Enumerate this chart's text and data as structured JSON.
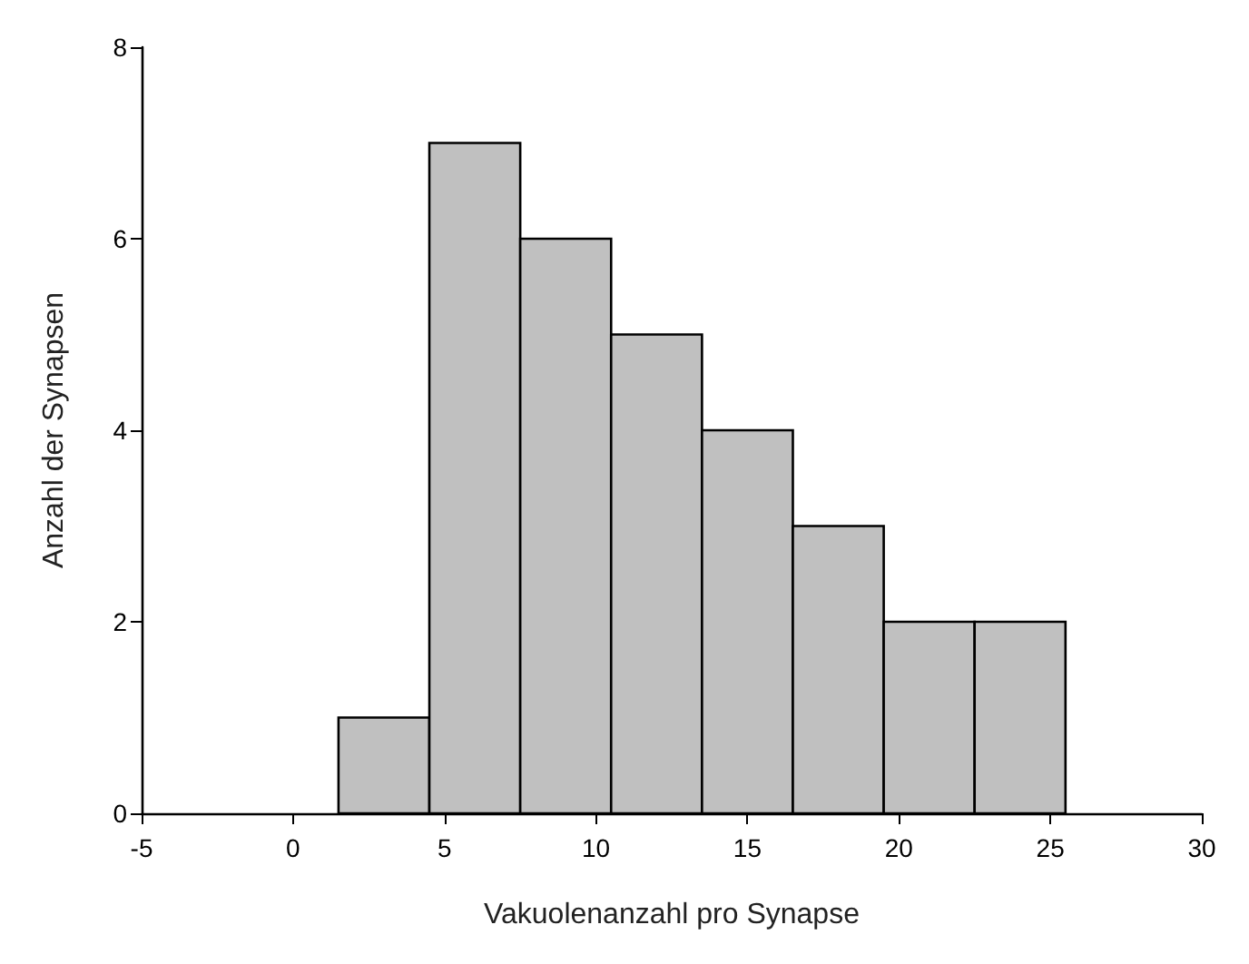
{
  "chart_data": {
    "type": "histogram",
    "xlabel": "Vakuolenanzahl pro Synapse",
    "ylabel": "Anzahl der Synapsen",
    "bins": [
      1.5,
      4.5,
      7.5,
      10.5,
      13.5,
      16.5,
      19.5,
      22.5,
      25.5
    ],
    "values": [
      1,
      7,
      6,
      5,
      4,
      3,
      2,
      2
    ],
    "color": "#c0c0c0",
    "xlim": [
      -5,
      30
    ],
    "xticks": [
      -5,
      0,
      5,
      10,
      15,
      20,
      25,
      30
    ],
    "ylim": [
      0,
      8
    ],
    "yticks": [
      0,
      2,
      4,
      6,
      8
    ],
    "grid": false
  }
}
